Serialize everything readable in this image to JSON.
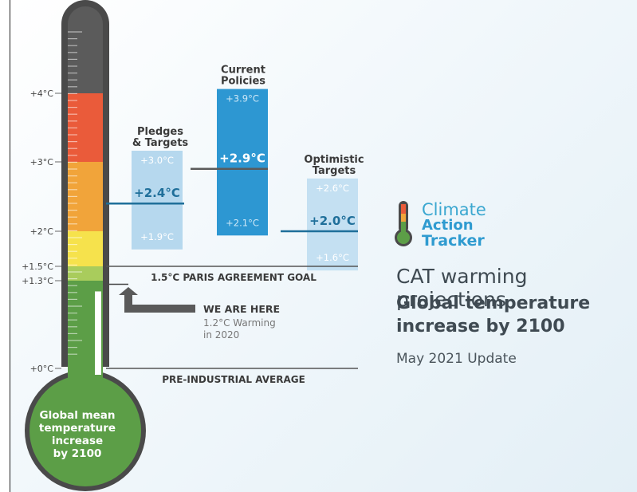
{
  "logo": {
    "line1": "Climate",
    "line2": "Action",
    "line3": "Tracker"
  },
  "caption": {
    "title": "CAT warming projections",
    "subtitle_line1": "Global temperature",
    "subtitle_line2": "increase by 2100",
    "date": "May 2021 Update"
  },
  "thermometer": {
    "bulb_label_lines": [
      "Global mean",
      "temperature",
      "increase",
      "by 2100"
    ],
    "colors": {
      "frame": "#4a4a4a",
      "band_above_4": "#5b5b5b",
      "band_3_4": "#ea5b3a",
      "band_2_3": "#f1a43a",
      "band_15_2": "#f6e24c",
      "band_13_15": "#a9cc5c",
      "band_below_13": "#5c9e47",
      "bulb": "#5c9e47"
    }
  },
  "chart_data": {
    "type": "range",
    "unit": "°C",
    "y_ticks": [
      {
        "label": "+4°C",
        "value": 4.0
      },
      {
        "label": "+3°C",
        "value": 3.0
      },
      {
        "label": "+2°C",
        "value": 2.0
      },
      {
        "label": "+1.5°C",
        "value": 1.5
      },
      {
        "label": "+1.3°C",
        "value": 1.3
      },
      {
        "label": "+0°C",
        "value": 0.0
      }
    ],
    "scenarios": [
      {
        "title_lines": [
          "Pledges",
          "& Targets"
        ],
        "high": 3.0,
        "central": 2.4,
        "low": 1.9,
        "high_label": "+3.0°C",
        "central_label": "+2.4°C",
        "low_label": "+1.9°C",
        "color": "#b6d8ee"
      },
      {
        "title_lines": [
          "Current",
          "Policies"
        ],
        "high": 3.9,
        "central": 2.9,
        "low": 2.1,
        "high_label": "+3.9°C",
        "central_label": "+2.9°C",
        "low_label": "+2.1°C",
        "color": "#2d97d2"
      },
      {
        "title_lines": [
          "Optimistic",
          "Targets"
        ],
        "high": 2.6,
        "central": 2.0,
        "low": 1.6,
        "high_label": "+2.6°C",
        "central_label": "+2.0°C",
        "low_label": "+1.6°C",
        "color": "#c4e0f2"
      }
    ],
    "reference_lines": [
      {
        "label": "1.5°C PARIS AGREEMENT GOAL",
        "value": 1.5
      },
      {
        "label": "PRE-INDUSTRIAL AVERAGE",
        "value": 0.0
      }
    ],
    "current_marker": {
      "value": 1.2,
      "label": "WE ARE HERE",
      "note_lines": [
        "1.2°C Warming",
        "in 2020"
      ]
    }
  }
}
